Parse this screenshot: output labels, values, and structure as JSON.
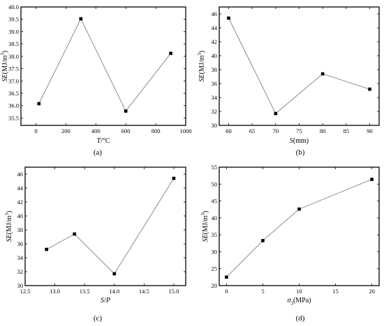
{
  "chart_data": [
    {
      "type": "line",
      "caption": "(a)",
      "xlabel": {
        "italic": "T",
        "rest": "/°C"
      },
      "ylabel": {
        "italic": "SE",
        "rest": "(MJ/m",
        "sup": "3",
        "close": ")"
      },
      "xlim": [
        -100,
        1000
      ],
      "ylim": [
        35.2,
        40.0
      ],
      "xticks": [
        0,
        200,
        400,
        600,
        800,
        1000
      ],
      "yticks": [
        35.5,
        36.0,
        36.5,
        37.0,
        37.5,
        38.0,
        38.5,
        39.0,
        39.5,
        40.0
      ],
      "xtick_labels": [
        "0",
        "200",
        "400",
        "600",
        "800",
        "1000"
      ],
      "ytick_labels": [
        "35.5",
        "36.0",
        "36.5",
        "37.0",
        "37.5",
        "38.0",
        "38.5",
        "39.0",
        "39.5",
        "40.0"
      ],
      "x": [
        20,
        300,
        600,
        900
      ],
      "y": [
        36.08,
        39.52,
        35.78,
        38.12
      ]
    },
    {
      "type": "line",
      "caption": "(b)",
      "xlabel": {
        "italic": "S",
        "rest": "(mm)"
      },
      "ylabel": {
        "italic": "SE",
        "rest": "(MJ/m",
        "sup": "3",
        "close": ")"
      },
      "xlim": [
        58,
        92
      ],
      "ylim": [
        30,
        47
      ],
      "xticks": [
        60,
        65,
        70,
        75,
        80,
        85,
        90
      ],
      "yticks": [
        30,
        32,
        34,
        36,
        38,
        40,
        42,
        44,
        46
      ],
      "xtick_labels": [
        "60",
        "65",
        "70",
        "75",
        "80",
        "85",
        "90"
      ],
      "ytick_labels": [
        "30",
        "32",
        "34",
        "36",
        "38",
        "40",
        "42",
        "44",
        "46"
      ],
      "x": [
        60,
        70,
        80,
        90
      ],
      "y": [
        45.4,
        31.7,
        37.4,
        35.2
      ]
    },
    {
      "type": "line",
      "caption": "(c)",
      "xlabel": {
        "italic": "S",
        "rest": "/",
        "italic2": "P"
      },
      "ylabel": {
        "italic": "SE",
        "rest": "(MJ/m",
        "sup": "3",
        "close": ")"
      },
      "xlim": [
        12.5,
        15.2
      ],
      "ylim": [
        30,
        47
      ],
      "xticks": [
        12.5,
        13.0,
        13.5,
        14.0,
        14.5,
        15.0
      ],
      "yticks": [
        30,
        32,
        34,
        36,
        38,
        40,
        42,
        44,
        46
      ],
      "xtick_labels": [
        "12.5",
        "13.0",
        "13.5",
        "14.0",
        "14.5",
        "15.0"
      ],
      "ytick_labels": [
        "30",
        "32",
        "34",
        "36",
        "38",
        "40",
        "42",
        "44",
        "46"
      ],
      "x": [
        12.86,
        13.33,
        14.0,
        15.0
      ],
      "y": [
        35.2,
        37.4,
        31.7,
        45.4
      ]
    },
    {
      "type": "line",
      "caption": "(d)",
      "xlabel": {
        "italic": "σ",
        "sub": "3",
        "rest": "(MPa)"
      },
      "ylabel": {
        "italic": "SE",
        "rest": "(MJ/m",
        "sup": "3",
        "close": ")"
      },
      "xlim": [
        -1,
        21
      ],
      "ylim": [
        20,
        55
      ],
      "xticks": [
        0,
        5,
        10,
        15,
        20
      ],
      "yticks": [
        20,
        25,
        30,
        35,
        40,
        45,
        50,
        55
      ],
      "xtick_labels": [
        "0",
        "5",
        "10",
        "15",
        "20"
      ],
      "ytick_labels": [
        "20",
        "25",
        "30",
        "35",
        "40",
        "45",
        "50",
        "55"
      ],
      "x": [
        0,
        5,
        10,
        20
      ],
      "y": [
        22.5,
        33.3,
        42.6,
        51.4
      ]
    }
  ]
}
